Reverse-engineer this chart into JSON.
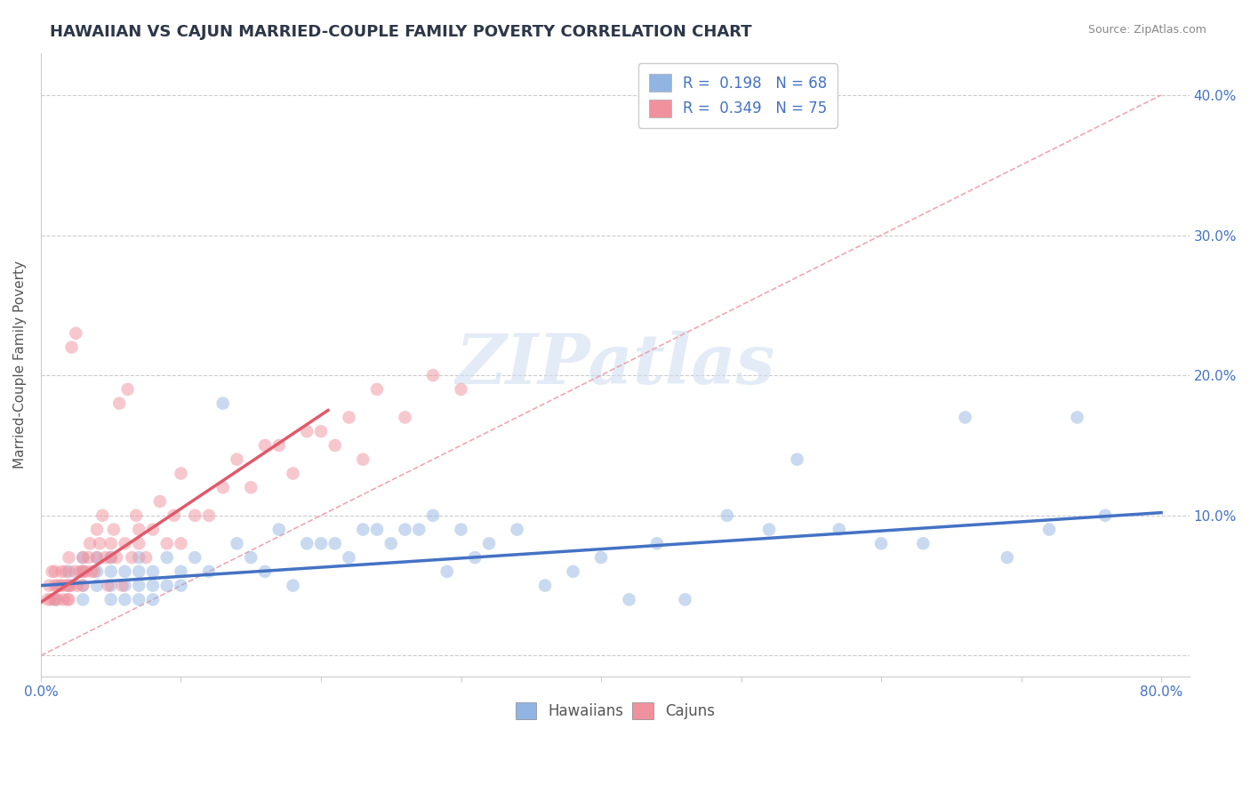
{
  "title": "HAWAIIAN VS CAJUN MARRIED-COUPLE FAMILY POVERTY CORRELATION CHART",
  "source": "Source: ZipAtlas.com",
  "ylabel": "Married-Couple Family Poverty",
  "xlim": [
    0.0,
    0.82
  ],
  "ylim": [
    -0.015,
    0.43
  ],
  "xticks": [
    0.0,
    0.1,
    0.2,
    0.3,
    0.4,
    0.5,
    0.6,
    0.7,
    0.8
  ],
  "xticklabels": [
    "0.0%",
    "",
    "",
    "",
    "",
    "",
    "",
    "",
    "80.0%"
  ],
  "yticks": [
    0.0,
    0.1,
    0.2,
    0.3,
    0.4
  ],
  "yticklabels": [
    "",
    "10.0%",
    "20.0%",
    "30.0%",
    "40.0%"
  ],
  "hawaiian_R": 0.198,
  "hawaiian_N": 68,
  "cajun_R": 0.349,
  "cajun_N": 75,
  "hawaiian_color": "#92b4e3",
  "cajun_color": "#f0919e",
  "hawaiian_line_color": "#4472c4",
  "cajun_line_color": "#e05a6a",
  "ref_line_color": "#e8a0a8",
  "background_color": "#ffffff",
  "hawaiian_x": [
    0.01,
    0.02,
    0.02,
    0.03,
    0.03,
    0.03,
    0.03,
    0.04,
    0.04,
    0.04,
    0.05,
    0.05,
    0.05,
    0.05,
    0.06,
    0.06,
    0.06,
    0.07,
    0.07,
    0.07,
    0.07,
    0.08,
    0.08,
    0.08,
    0.09,
    0.09,
    0.1,
    0.1,
    0.11,
    0.12,
    0.13,
    0.14,
    0.15,
    0.16,
    0.17,
    0.18,
    0.19,
    0.2,
    0.21,
    0.22,
    0.23,
    0.24,
    0.25,
    0.26,
    0.27,
    0.28,
    0.29,
    0.3,
    0.31,
    0.32,
    0.34,
    0.36,
    0.38,
    0.4,
    0.42,
    0.44,
    0.46,
    0.49,
    0.52,
    0.54,
    0.57,
    0.6,
    0.63,
    0.66,
    0.69,
    0.72,
    0.74,
    0.76
  ],
  "hawaiian_y": [
    0.04,
    0.05,
    0.06,
    0.05,
    0.06,
    0.07,
    0.04,
    0.05,
    0.06,
    0.07,
    0.04,
    0.05,
    0.06,
    0.07,
    0.04,
    0.05,
    0.06,
    0.04,
    0.05,
    0.06,
    0.07,
    0.04,
    0.05,
    0.06,
    0.05,
    0.07,
    0.05,
    0.06,
    0.07,
    0.06,
    0.18,
    0.08,
    0.07,
    0.06,
    0.09,
    0.05,
    0.08,
    0.08,
    0.08,
    0.07,
    0.09,
    0.09,
    0.08,
    0.09,
    0.09,
    0.1,
    0.06,
    0.09,
    0.07,
    0.08,
    0.09,
    0.05,
    0.06,
    0.07,
    0.04,
    0.08,
    0.04,
    0.1,
    0.09,
    0.14,
    0.09,
    0.08,
    0.08,
    0.17,
    0.07,
    0.09,
    0.17,
    0.1
  ],
  "cajun_x": [
    0.005,
    0.006,
    0.007,
    0.008,
    0.01,
    0.01,
    0.01,
    0.012,
    0.012,
    0.014,
    0.015,
    0.015,
    0.016,
    0.018,
    0.018,
    0.019,
    0.02,
    0.02,
    0.02,
    0.022,
    0.022,
    0.024,
    0.025,
    0.026,
    0.028,
    0.03,
    0.03,
    0.03,
    0.032,
    0.034,
    0.035,
    0.036,
    0.038,
    0.04,
    0.04,
    0.042,
    0.044,
    0.046,
    0.048,
    0.05,
    0.05,
    0.052,
    0.054,
    0.056,
    0.058,
    0.06,
    0.062,
    0.065,
    0.068,
    0.07,
    0.07,
    0.075,
    0.08,
    0.085,
    0.09,
    0.095,
    0.1,
    0.1,
    0.11,
    0.12,
    0.13,
    0.14,
    0.15,
    0.16,
    0.17,
    0.18,
    0.19,
    0.2,
    0.21,
    0.22,
    0.23,
    0.24,
    0.26,
    0.28,
    0.3
  ],
  "cajun_y": [
    0.04,
    0.05,
    0.04,
    0.06,
    0.04,
    0.05,
    0.06,
    0.04,
    0.05,
    0.05,
    0.05,
    0.06,
    0.04,
    0.05,
    0.06,
    0.04,
    0.04,
    0.05,
    0.07,
    0.05,
    0.22,
    0.06,
    0.23,
    0.05,
    0.06,
    0.05,
    0.06,
    0.07,
    0.06,
    0.07,
    0.08,
    0.06,
    0.06,
    0.09,
    0.07,
    0.08,
    0.1,
    0.07,
    0.05,
    0.07,
    0.08,
    0.09,
    0.07,
    0.18,
    0.05,
    0.08,
    0.19,
    0.07,
    0.1,
    0.08,
    0.09,
    0.07,
    0.09,
    0.11,
    0.08,
    0.1,
    0.08,
    0.13,
    0.1,
    0.1,
    0.12,
    0.14,
    0.12,
    0.15,
    0.15,
    0.13,
    0.16,
    0.16,
    0.15,
    0.17,
    0.14,
    0.19,
    0.17,
    0.2,
    0.19
  ],
  "title_fontsize": 13,
  "axis_label_fontsize": 11,
  "tick_fontsize": 11,
  "legend_fontsize": 12,
  "marker_size": 110,
  "marker_alpha": 0.5,
  "line_width": 2.5
}
